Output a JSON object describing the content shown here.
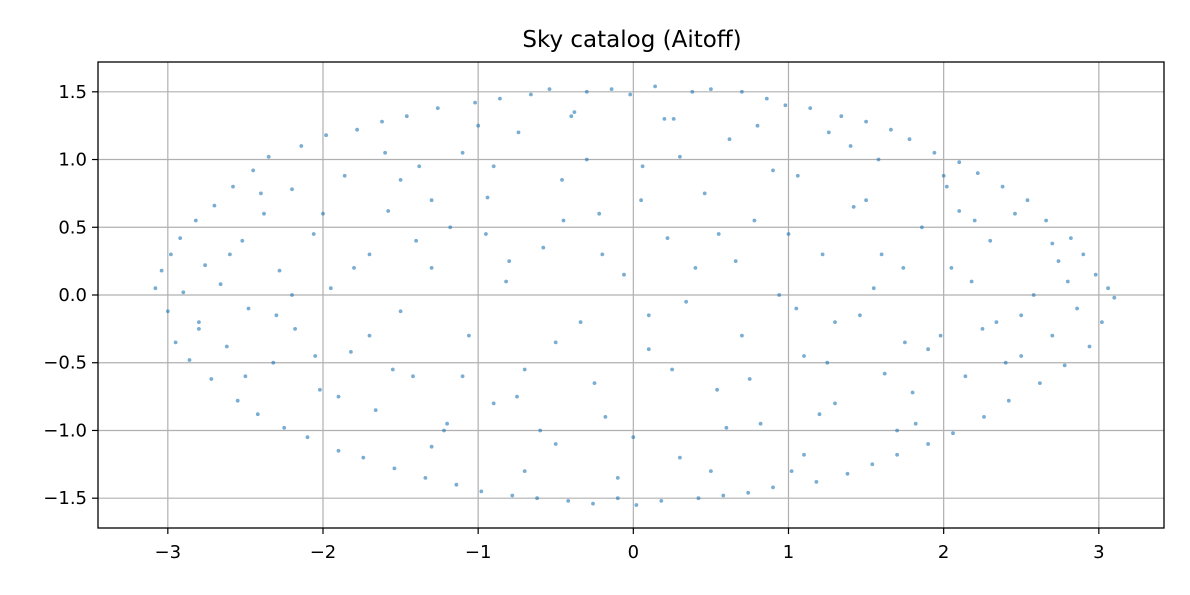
{
  "chart_data": {
    "type": "scatter",
    "title": "Sky catalog (Aitoff)",
    "xlabel": "",
    "ylabel": "",
    "xlim": [
      -3.45,
      3.42
    ],
    "ylim": [
      -1.72,
      1.72
    ],
    "x_ticks": [
      -3,
      -2,
      -1,
      0,
      1,
      2,
      3
    ],
    "x_tick_labels": [
      "−3",
      "−2",
      "−1",
      "0",
      "1",
      "2",
      "3"
    ],
    "y_ticks": [
      -1.5,
      -1.0,
      -0.5,
      0.0,
      0.5,
      1.0,
      1.5
    ],
    "y_tick_labels": [
      "−1.5",
      "−1.0",
      "−0.5",
      "0.0",
      "0.5",
      "1.0",
      "1.5"
    ],
    "grid": true,
    "legend": "none",
    "point_color": "#1f77b4",
    "point_alpha": 0.6,
    "series": [
      {
        "points": [
          [
            -3.08,
            0.05
          ],
          [
            -3.04,
            0.18
          ],
          [
            -3.0,
            -0.12
          ],
          [
            -2.98,
            0.3
          ],
          [
            -2.95,
            -0.35
          ],
          [
            -2.92,
            0.42
          ],
          [
            -2.9,
            0.02
          ],
          [
            -2.86,
            -0.48
          ],
          [
            -2.82,
            0.55
          ],
          [
            -2.8,
            -0.2
          ],
          [
            -2.76,
            0.22
          ],
          [
            -2.72,
            -0.62
          ],
          [
            -2.7,
            0.66
          ],
          [
            -2.66,
            0.08
          ],
          [
            -2.62,
            -0.38
          ],
          [
            -2.58,
            0.8
          ],
          [
            -2.55,
            -0.78
          ],
          [
            -2.52,
            0.4
          ],
          [
            -2.48,
            -0.1
          ],
          [
            -2.45,
            0.92
          ],
          [
            -2.42,
            -0.88
          ],
          [
            -2.38,
            0.6
          ],
          [
            -2.35,
            1.02
          ],
          [
            -2.32,
            -0.5
          ],
          [
            -2.28,
            0.18
          ],
          [
            -2.25,
            -0.98
          ],
          [
            -2.2,
            0.78
          ],
          [
            -2.18,
            -0.25
          ],
          [
            -2.14,
            1.1
          ],
          [
            -2.1,
            -1.05
          ],
          [
            -2.06,
            0.45
          ],
          [
            -2.02,
            -0.7
          ],
          [
            -1.98,
            1.18
          ],
          [
            -1.95,
            0.05
          ],
          [
            -1.9,
            -1.15
          ],
          [
            -1.86,
            0.88
          ],
          [
            -1.82,
            -0.42
          ],
          [
            -1.78,
            1.22
          ],
          [
            -1.74,
            -1.2
          ],
          [
            -1.7,
            0.3
          ],
          [
            -1.66,
            -0.85
          ],
          [
            -1.62,
            1.28
          ],
          [
            -1.58,
            0.62
          ],
          [
            -1.54,
            -1.28
          ],
          [
            -1.5,
            -0.12
          ],
          [
            -1.46,
            1.32
          ],
          [
            -1.42,
            -0.6
          ],
          [
            -1.38,
            0.95
          ],
          [
            -1.34,
            -1.35
          ],
          [
            -1.3,
            0.2
          ],
          [
            -1.26,
            1.38
          ],
          [
            -1.22,
            -1.0
          ],
          [
            -1.18,
            0.5
          ],
          [
            -1.14,
            -1.4
          ],
          [
            -1.1,
            1.05
          ],
          [
            -1.06,
            -0.3
          ],
          [
            -1.02,
            1.42
          ],
          [
            -0.98,
            -1.45
          ],
          [
            -0.94,
            0.72
          ],
          [
            -0.9,
            -0.8
          ],
          [
            -0.86,
            1.45
          ],
          [
            -0.82,
            0.1
          ],
          [
            -0.78,
            -1.48
          ],
          [
            -0.74,
            1.2
          ],
          [
            -0.7,
            -0.55
          ],
          [
            -0.66,
            1.48
          ],
          [
            -0.62,
            -1.5
          ],
          [
            -0.58,
            0.35
          ],
          [
            -0.54,
            1.52
          ],
          [
            -0.5,
            -1.1
          ],
          [
            -0.46,
            0.85
          ],
          [
            -0.42,
            -1.52
          ],
          [
            -0.38,
            1.35
          ],
          [
            -0.34,
            -0.2
          ],
          [
            -0.3,
            1.5
          ],
          [
            -0.26,
            -1.54
          ],
          [
            -0.22,
            0.6
          ],
          [
            -0.18,
            -0.9
          ],
          [
            -0.14,
            1.52
          ],
          [
            -0.1,
            -1.5
          ],
          [
            -0.06,
            0.15
          ],
          [
            -0.02,
            1.48
          ],
          [
            0.02,
            -1.55
          ],
          [
            0.06,
            0.95
          ],
          [
            0.1,
            -0.4
          ],
          [
            0.14,
            1.54
          ],
          [
            0.18,
            -1.52
          ],
          [
            0.22,
            0.42
          ],
          [
            0.26,
            1.3
          ],
          [
            0.3,
            -1.2
          ],
          [
            0.34,
            -0.05
          ],
          [
            0.38,
            1.5
          ],
          [
            0.42,
            -1.5
          ],
          [
            0.46,
            0.75
          ],
          [
            0.5,
            1.52
          ],
          [
            0.54,
            -0.7
          ],
          [
            0.58,
            -1.48
          ],
          [
            0.62,
            1.15
          ],
          [
            0.66,
            0.25
          ],
          [
            0.7,
            1.5
          ],
          [
            0.74,
            -1.46
          ],
          [
            0.78,
            0.55
          ],
          [
            0.82,
            -0.95
          ],
          [
            0.86,
            1.45
          ],
          [
            0.9,
            -1.42
          ],
          [
            0.94,
            0.0
          ],
          [
            0.98,
            1.4
          ],
          [
            1.02,
            -1.3
          ],
          [
            1.06,
            0.88
          ],
          [
            1.1,
            -0.45
          ],
          [
            1.14,
            1.38
          ],
          [
            1.18,
            -1.38
          ],
          [
            1.22,
            0.3
          ],
          [
            1.26,
            1.2
          ],
          [
            1.3,
            -0.8
          ],
          [
            1.34,
            1.32
          ],
          [
            1.38,
            -1.32
          ],
          [
            1.42,
            0.65
          ],
          [
            1.46,
            -0.15
          ],
          [
            1.5,
            1.28
          ],
          [
            1.54,
            -1.25
          ],
          [
            1.58,
            1.0
          ],
          [
            1.62,
            -0.58
          ],
          [
            1.66,
            1.22
          ],
          [
            1.7,
            -1.18
          ],
          [
            1.74,
            0.2
          ],
          [
            1.78,
            1.15
          ],
          [
            1.82,
            -0.95
          ],
          [
            1.86,
            0.5
          ],
          [
            1.9,
            -1.1
          ],
          [
            1.94,
            1.05
          ],
          [
            1.98,
            -0.3
          ],
          [
            2.02,
            0.8
          ],
          [
            2.06,
            -1.02
          ],
          [
            2.1,
            0.98
          ],
          [
            2.14,
            -0.6
          ],
          [
            2.18,
            0.1
          ],
          [
            2.22,
            0.9
          ],
          [
            2.26,
            -0.9
          ],
          [
            2.3,
            0.4
          ],
          [
            2.34,
            -0.2
          ],
          [
            2.38,
            0.8
          ],
          [
            2.42,
            -0.78
          ],
          [
            2.46,
            0.6
          ],
          [
            2.5,
            -0.45
          ],
          [
            2.54,
            0.7
          ],
          [
            2.58,
            0.0
          ],
          [
            2.62,
            -0.65
          ],
          [
            2.66,
            0.55
          ],
          [
            2.7,
            -0.3
          ],
          [
            2.74,
            0.25
          ],
          [
            2.78,
            -0.52
          ],
          [
            2.82,
            0.42
          ],
          [
            2.86,
            -0.1
          ],
          [
            2.9,
            0.3
          ],
          [
            2.94,
            -0.38
          ],
          [
            2.98,
            0.15
          ],
          [
            3.02,
            -0.2
          ],
          [
            3.06,
            0.05
          ],
          [
            3.1,
            -0.02
          ],
          [
            -2.6,
            0.3
          ],
          [
            -2.3,
            -0.15
          ],
          [
            -2.0,
            0.6
          ],
          [
            -1.7,
            -0.3
          ],
          [
            -1.4,
            0.4
          ],
          [
            -1.1,
            -0.6
          ],
          [
            -0.8,
            0.25
          ],
          [
            -0.5,
            -0.35
          ],
          [
            -0.2,
            0.3
          ],
          [
            0.1,
            -0.15
          ],
          [
            0.4,
            0.2
          ],
          [
            0.7,
            -0.3
          ],
          [
            1.0,
            0.45
          ],
          [
            1.3,
            -0.2
          ],
          [
            1.6,
            0.3
          ],
          [
            1.9,
            -0.4
          ],
          [
            2.2,
            0.55
          ],
          [
            2.5,
            -0.15
          ],
          [
            2.8,
            0.1
          ],
          [
            -2.8,
            -0.25
          ],
          [
            -2.4,
            0.75
          ],
          [
            -1.9,
            -0.75
          ],
          [
            -1.5,
            0.85
          ],
          [
            -1.2,
            -0.95
          ],
          [
            -0.9,
            0.95
          ],
          [
            -0.6,
            -1.0
          ],
          [
            -0.3,
            1.0
          ],
          [
            0.0,
            -1.05
          ],
          [
            0.3,
            1.02
          ],
          [
            0.6,
            -0.98
          ],
          [
            0.9,
            0.92
          ],
          [
            1.2,
            -0.88
          ],
          [
            1.5,
            0.7
          ],
          [
            1.8,
            -0.72
          ],
          [
            2.1,
            0.62
          ],
          [
            2.4,
            -0.5
          ],
          [
            2.7,
            0.38
          ],
          [
            -1.6,
            1.05
          ],
          [
            -1.3,
            -1.12
          ],
          [
            -1.0,
            1.25
          ],
          [
            -0.7,
            -1.3
          ],
          [
            -0.4,
            1.32
          ],
          [
            -0.1,
            -1.35
          ],
          [
            0.2,
            1.3
          ],
          [
            0.5,
            -1.3
          ],
          [
            0.8,
            1.25
          ],
          [
            1.1,
            -1.18
          ],
          [
            1.4,
            1.1
          ],
          [
            1.7,
            -1.0
          ],
          [
            2.0,
            0.88
          ],
          [
            -2.2,
            0.0
          ],
          [
            -1.8,
            0.2
          ],
          [
            -1.3,
            0.7
          ],
          [
            -0.95,
            0.45
          ],
          [
            -0.45,
            0.55
          ],
          [
            0.05,
            0.7
          ],
          [
            0.55,
            0.45
          ],
          [
            1.05,
            -0.1
          ],
          [
            1.55,
            0.05
          ],
          [
            2.05,
            0.2
          ],
          [
            -2.5,
            -0.6
          ],
          [
            -2.05,
            -0.45
          ],
          [
            -1.55,
            -0.55
          ],
          [
            -0.75,
            -0.75
          ],
          [
            -0.25,
            -0.65
          ],
          [
            0.25,
            -0.55
          ],
          [
            0.75,
            -0.62
          ],
          [
            1.25,
            -0.5
          ],
          [
            1.75,
            -0.35
          ],
          [
            2.25,
            -0.25
          ]
        ]
      }
    ]
  }
}
